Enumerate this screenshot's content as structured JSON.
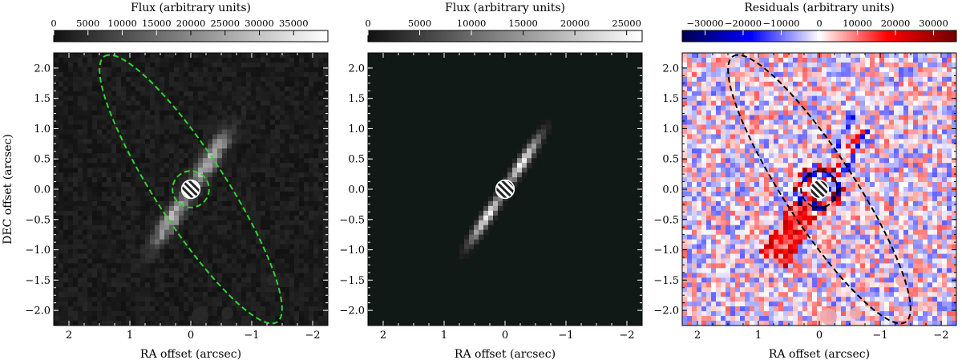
{
  "figure": {
    "panels": [
      {
        "id": "observed",
        "image_kind": "noisy_disk",
        "colorbar": {
          "label": "Flux (arbitrary units)",
          "ticks": [
            0,
            5000,
            10000,
            15000,
            20000,
            25000,
            30000,
            35000
          ],
          "tick_labels": [
            "0",
            "5000",
            "10000",
            "15000",
            "20000",
            "25000",
            "30000",
            "35000"
          ],
          "range": [
            0,
            40000
          ],
          "cmap": "gray"
        },
        "xlabel": "RA offset (arcsec)",
        "ylabel": "DEC offset (arcsec)",
        "show_ylabels": true,
        "contour_color": "#2fd42f"
      },
      {
        "id": "model",
        "image_kind": "smooth_disk",
        "colorbar": {
          "label": "Flux (arbitrary units)",
          "ticks": [
            0,
            5000,
            10000,
            15000,
            20000,
            25000
          ],
          "tick_labels": [
            "0",
            "5000",
            "10000",
            "15000",
            "20000",
            "25000"
          ],
          "range": [
            0,
            26500
          ],
          "cmap": "gray"
        },
        "xlabel": "RA offset (arcsec)",
        "ylabel": "",
        "show_ylabels": true,
        "contour_color": ""
      },
      {
        "id": "residuals",
        "image_kind": "residual",
        "colorbar": {
          "label": "Residuals (arbitrary units)",
          "ticks": [
            -30000,
            -20000,
            -10000,
            0,
            10000,
            20000,
            30000
          ],
          "tick_labels": [
            "−30000",
            "−20000",
            "−10000",
            "0",
            "10000",
            "20000",
            "30000"
          ],
          "range": [
            -36000,
            36000
          ],
          "cmap": "seismic"
        },
        "xlabel": "RA offset (arcsec)",
        "ylabel": "",
        "show_ylabels": true,
        "contour_color": "#000000"
      }
    ]
  },
  "chart_data": {
    "type": "heatmap",
    "description_of_axes": "x axis RA offset decreasing to the right, y axis DEC offset",
    "xlim": [
      2.25,
      -2.25
    ],
    "ylim": [
      -2.25,
      2.25
    ],
    "xticks": [
      2,
      1,
      0,
      -1,
      -2
    ],
    "xtick_labels": [
      "2",
      "1",
      "0",
      "−1",
      "−2"
    ],
    "yticks": [
      2.0,
      1.5,
      1.0,
      0.5,
      0.0,
      -0.5,
      -1.0,
      -1.5,
      -2.0
    ],
    "ytick_labels": [
      "2.0",
      "1.5",
      "1.0",
      "0.5",
      "0.0",
      "−0.5",
      "−1.0",
      "−1.5",
      "−2.0"
    ],
    "disk_position_angle_deg_from_north_through_east": -33,
    "disk_semi_major_arcsec": 1.0,
    "outer_ellipse_semi_major_arcsec": 2.6,
    "outer_ellipse_semi_minor_arcsec": 0.58,
    "inner_circle_radius_arcsec": 0.3,
    "coronagraph_mask_radius_arcsec": 0.15
  }
}
